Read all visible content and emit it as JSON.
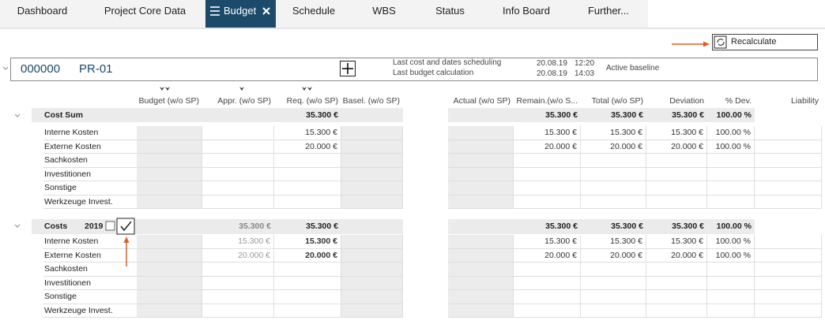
{
  "tabs": [
    "Dashboard",
    "Project Core Data",
    "Budget",
    "Schedule",
    "WBS",
    "Status",
    "Info Board",
    "Further..."
  ],
  "active_tab_index": 2,
  "toolbar": {
    "recalculate": "Recalculate"
  },
  "project": {
    "number": "000000",
    "name": "PR-01",
    "last_scheduling_label": "Last cost and dates scheduling",
    "last_scheduling_date": "20.08.19",
    "last_scheduling_time": "12:20",
    "last_calculation_label": "Last budget calculation",
    "last_calculation_date": "20.08.19",
    "last_calculation_time": "14:03",
    "baseline": "Active baseline"
  },
  "table": {
    "columns": [
      "Budget (w/o SP)",
      "Appr. (w/o SP)",
      "Req. (w/o SP)",
      "Basel. (w/o SP)",
      "Actual (w/o SP)",
      "Remain.(w/o S...",
      "Total (w/o SP)",
      "Deviation",
      "% Dev.",
      "Liability"
    ],
    "sections": [
      {
        "title": "Cost Sum",
        "total": [
          null,
          null,
          "35.300 €",
          null,
          null,
          "35.300 €",
          "35.300 €",
          "35.300 €",
          "100.00 %",
          null
        ],
        "rows": [
          {
            "label": "Interne Kosten",
            "cells": [
              null,
              null,
              "15.300 €",
              null,
              null,
              "15.300 €",
              "15.300 €",
              "15.300 €",
              "100.00 %",
              null
            ]
          },
          {
            "label": "Externe Kosten",
            "cells": [
              null,
              null,
              "20.000 €",
              null,
              null,
              "20.000 €",
              "20.000 €",
              "20.000 €",
              "100.00 %",
              null
            ]
          },
          {
            "label": "Sachkosten",
            "cells": [
              null,
              null,
              null,
              null,
              null,
              null,
              null,
              null,
              null,
              null
            ]
          },
          {
            "label": "Investitionen",
            "cells": [
              null,
              null,
              null,
              null,
              null,
              null,
              null,
              null,
              null,
              null
            ]
          },
          {
            "label": "Sonstige",
            "cells": [
              null,
              null,
              null,
              null,
              null,
              null,
              null,
              null,
              null,
              null
            ]
          },
          {
            "label": "Werkzeuge Invest.",
            "cells": [
              null,
              null,
              null,
              null,
              null,
              null,
              null,
              null,
              null,
              null
            ]
          }
        ]
      },
      {
        "title": "Costs",
        "year": "2019",
        "total": [
          null,
          "35.300 €",
          "35.300 €",
          null,
          null,
          "35.300 €",
          "35.300 €",
          "35.300 €",
          "100.00 %",
          null
        ],
        "rows": [
          {
            "label": "Interne Kosten",
            "cells": [
              null,
              "15.300 €",
              "15.300 €",
              null,
              null,
              "15.300 €",
              "15.300 €",
              "15.300 €",
              "100.00 %",
              null
            ]
          },
          {
            "label": "Externe Kosten",
            "cells": [
              null,
              "20.000 €",
              "20.000 €",
              null,
              null,
              "20.000 €",
              "20.000 €",
              "20.000 €",
              "100.00 %",
              null
            ]
          },
          {
            "label": "Sachkosten",
            "cells": [
              null,
              null,
              null,
              null,
              null,
              null,
              null,
              null,
              null,
              null
            ]
          },
          {
            "label": "Investitionen",
            "cells": [
              null,
              null,
              null,
              null,
              null,
              null,
              null,
              null,
              null,
              null
            ]
          },
          {
            "label": "Sonstige",
            "cells": [
              null,
              null,
              null,
              null,
              null,
              null,
              null,
              null,
              null,
              null
            ]
          },
          {
            "label": "Werkzeuge Invest.",
            "cells": [
              null,
              null,
              null,
              null,
              null,
              null,
              null,
              null,
              null,
              null
            ]
          }
        ]
      }
    ]
  }
}
